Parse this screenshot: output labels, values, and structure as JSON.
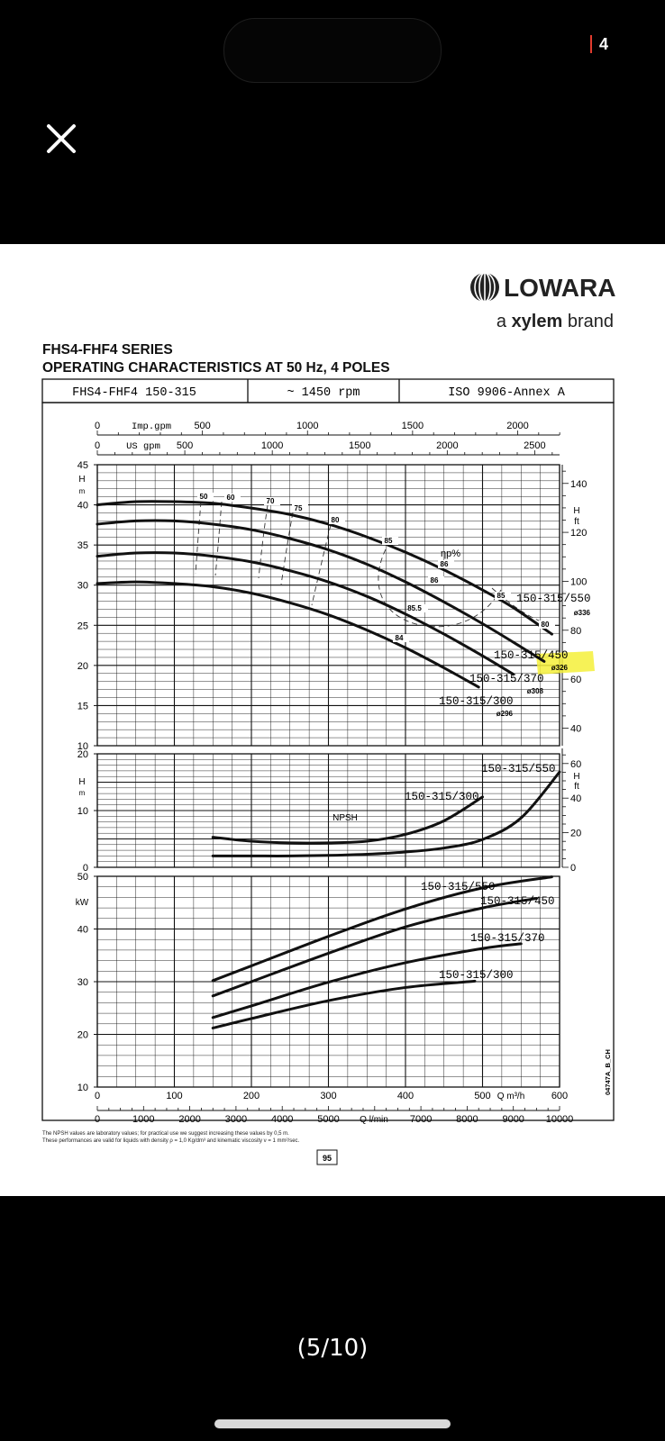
{
  "viewer": {
    "page_indicator": "4",
    "counter": "(5/10)",
    "accent": "#e23b2e"
  },
  "doc": {
    "brand": "LOWARA",
    "brand_sub_a": "a ",
    "brand_sub_b": "xylem",
    "brand_sub_c": " brand",
    "series": "FHS4-FHF4 SERIES",
    "subtitle": "OPERATING CHARACTERISTICS AT 50 Hz, 4 POLES",
    "header_cells": [
      "FHS4-FHF4 150-315",
      "~ 1450 rpm",
      "ISO 9906-Annex A"
    ],
    "footnote_1": "The NPSH values are laboratory values; for practical use we suggest increasing these values by 0,5 m.",
    "footnote_2": "These performances are valid for liquids with density ρ = 1,0 Kg/dm³ and kinematic viscosity ν = 1 mm²/sec.",
    "page_number": "95",
    "drawing_code": "04747A_B_CH",
    "highlight_color": "#f5f03a"
  },
  "chart_data": [
    {
      "type": "line",
      "name": "head",
      "top_axes": {
        "imp_label": "Imp.gpm",
        "imp_ticks": [
          "0",
          "500",
          "1000",
          "1500",
          "2000"
        ],
        "us_label": "US gpm",
        "us_ticks": [
          "0",
          "500",
          "1000",
          "1500",
          "2000",
          "2500"
        ]
      },
      "ylabel": "H m",
      "y2label": "H ft",
      "ylim": [
        10,
        45
      ],
      "yticks": [
        10,
        15,
        20,
        25,
        30,
        35,
        40,
        45
      ],
      "y2ticks": [
        40,
        60,
        80,
        100,
        120,
        140
      ],
      "xlim": [
        0,
        600
      ],
      "series": [
        {
          "name": "150-315/550",
          "diameter": "ø336",
          "x": [
            0,
            50,
            100,
            150,
            200,
            250,
            300,
            350,
            400,
            450,
            500,
            540,
            590
          ],
          "y": [
            40.0,
            40.4,
            40.4,
            40.2,
            39.6,
            38.8,
            37.6,
            36.0,
            34.1,
            31.9,
            29.4,
            27.2,
            23.9
          ]
        },
        {
          "name": "150-315/450",
          "diameter": "ø326",
          "x": [
            0,
            50,
            100,
            150,
            200,
            250,
            300,
            350,
            400,
            450,
            500,
            550,
            580
          ],
          "y": [
            37.6,
            38.0,
            38.0,
            37.6,
            36.9,
            35.8,
            34.4,
            32.6,
            30.4,
            27.9,
            25.2,
            22.3,
            20.5
          ]
        },
        {
          "name": "150-315/370",
          "diameter": "ø308",
          "x": [
            0,
            50,
            100,
            150,
            200,
            250,
            300,
            350,
            400,
            450,
            500,
            540
          ],
          "y": [
            33.6,
            34.0,
            34.0,
            33.6,
            32.9,
            31.8,
            30.4,
            28.6,
            26.4,
            23.9,
            21.2,
            18.9
          ]
        },
        {
          "name": "150-315/300",
          "diameter": "ø296",
          "x": [
            0,
            50,
            100,
            150,
            200,
            250,
            300,
            350,
            400,
            450,
            495
          ],
          "y": [
            30.2,
            30.4,
            30.2,
            29.8,
            29.0,
            27.8,
            26.3,
            24.4,
            22.2,
            19.7,
            17.3
          ]
        }
      ],
      "efficiency_label": "ηp%",
      "efficiency_values": [
        "50",
        "60",
        "70",
        "75",
        "80",
        "85",
        "86",
        "86",
        "85.5",
        "85",
        "84",
        "80"
      ]
    },
    {
      "type": "line",
      "name": "npsh",
      "label": "NPSH",
      "ylabel": "H m",
      "y2label": "H ft",
      "ylim": [
        0,
        20
      ],
      "yticks": [
        0,
        10,
        20
      ],
      "y2ticks": [
        0,
        20,
        40,
        60
      ],
      "xlim": [
        0,
        600
      ],
      "series": [
        {
          "name": "150-315/300",
          "x": [
            150,
            200,
            250,
            300,
            350,
            400,
            450,
            500
          ],
          "y": [
            5.3,
            4.6,
            4.3,
            4.3,
            4.6,
            5.8,
            8.2,
            12.4
          ]
        },
        {
          "name": "150-315/550",
          "x": [
            150,
            200,
            250,
            300,
            350,
            400,
            450,
            500,
            550,
            600
          ],
          "y": [
            2.0,
            2.0,
            2.0,
            2.1,
            2.3,
            2.7,
            3.4,
            4.9,
            8.7,
            16.8
          ]
        }
      ]
    },
    {
      "type": "line",
      "name": "power",
      "ylabel": "kW",
      "ylim": [
        10,
        50
      ],
      "yticks": [
        10,
        20,
        30,
        40,
        50
      ],
      "xlim": [
        0,
        600
      ],
      "xlabel": "Q m³/h",
      "xticks": [
        0,
        100,
        200,
        300,
        400,
        500,
        600
      ],
      "x2label": "Q l/min",
      "x2ticks": [
        "0",
        "1000",
        "2000",
        "3000",
        "4000",
        "5000",
        "7000",
        "8000",
        "9000",
        "10000"
      ],
      "series": [
        {
          "name": "150-315/550",
          "x": [
            150,
            200,
            300,
            400,
            500,
            590
          ],
          "y": [
            30.2,
            33.0,
            38.6,
            43.8,
            47.8,
            49.9
          ]
        },
        {
          "name": "150-315/450",
          "x": [
            150,
            200,
            300,
            400,
            500,
            570
          ],
          "y": [
            27.3,
            30.0,
            35.4,
            40.4,
            44.0,
            45.8
          ]
        },
        {
          "name": "150-315/370",
          "x": [
            150,
            200,
            300,
            400,
            500,
            550
          ],
          "y": [
            23.2,
            25.4,
            29.9,
            33.6,
            36.3,
            37.2
          ]
        },
        {
          "name": "150-315/300",
          "x": [
            150,
            200,
            300,
            400,
            490
          ],
          "y": [
            21.2,
            23.0,
            26.4,
            28.9,
            30.1
          ]
        }
      ]
    }
  ]
}
